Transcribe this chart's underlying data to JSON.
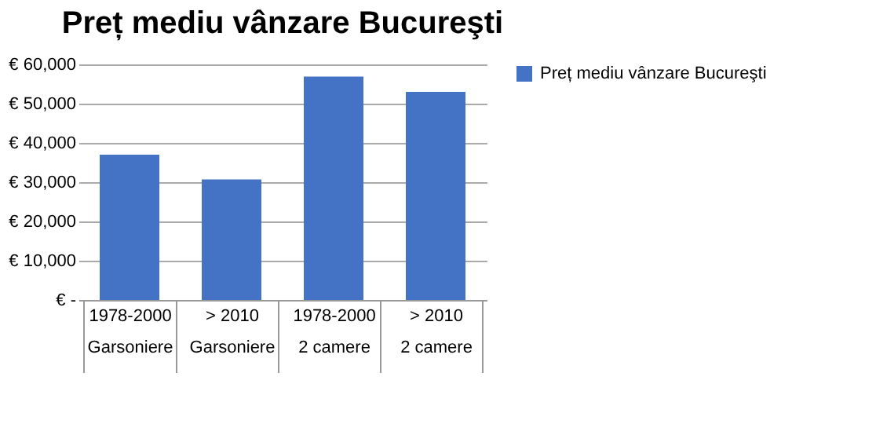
{
  "chart_data": {
    "type": "bar",
    "title": "Preț mediu vânzare Bucureşti",
    "categories": [
      "1978-2000\nGarsoniere",
      "> 2010\nGarsoniere",
      "1978-2000\n2 camere",
      "> 2010\n2 camere"
    ],
    "series": [
      {
        "name": "Preț mediu vânzare Bucureşti",
        "color": "#4472c4",
        "values": [
          37000,
          30700,
          56900,
          53000
        ]
      }
    ],
    "ylim": [
      0,
      60000
    ],
    "yticks": [
      {
        "value": 0,
        "label": "€ -"
      },
      {
        "value": 10000,
        "label": "€ 10,000"
      },
      {
        "value": 20000,
        "label": "€ 20,000"
      },
      {
        "value": 30000,
        "label": "€ 30,000"
      },
      {
        "value": 40000,
        "label": "€ 40,000"
      },
      {
        "value": 50000,
        "label": "€ 50,000"
      },
      {
        "value": 60000,
        "label": "€ 60,000"
      }
    ],
    "grid": "y",
    "legend": "right"
  }
}
